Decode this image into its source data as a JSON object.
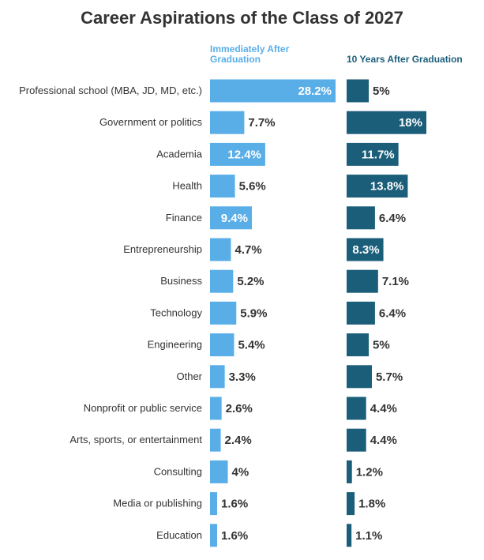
{
  "chart_data": {
    "type": "bar",
    "title": "Career Aspirations of the Class of 2027",
    "categories": [
      "Professional school (MBA, JD, MD, etc.)",
      "Government or politics",
      "Academia",
      "Health",
      "Finance",
      "Entrepreneurship",
      "Business",
      "Technology",
      "Engineering",
      "Other",
      "Nonprofit or public service",
      "Arts, sports, or entertainment",
      "Consulting",
      "Media or publishing",
      "Education"
    ],
    "series": [
      {
        "name": "Immediately After Graduation",
        "color": "#5aaee8",
        "values": [
          28.2,
          7.7,
          12.4,
          5.6,
          9.4,
          4.7,
          5.2,
          5.9,
          5.4,
          3.3,
          2.6,
          2.4,
          4,
          1.6,
          1.6
        ],
        "labels": [
          "28.2%",
          "7.7%",
          "12.4%",
          "5.6%",
          "9.4%",
          "4.7%",
          "5.2%",
          "5.9%",
          "5.4%",
          "3.3%",
          "2.6%",
          "2.4%",
          "4%",
          "1.6%",
          "1.6%"
        ]
      },
      {
        "name": "10 Years After Graduation",
        "color": "#1b5e7a",
        "values": [
          5,
          18,
          11.7,
          13.8,
          6.4,
          8.3,
          7.1,
          6.4,
          5,
          5.7,
          4.4,
          4.4,
          1.2,
          1.8,
          1.1
        ],
        "labels": [
          "5%",
          "18%",
          "11.7%",
          "13.8%",
          "6.4%",
          "8.3%",
          "7.1%",
          "6.4%",
          "5%",
          "5.7%",
          "4.4%",
          "4.4%",
          "1.2%",
          "1.8%",
          "1.1%"
        ]
      }
    ]
  }
}
